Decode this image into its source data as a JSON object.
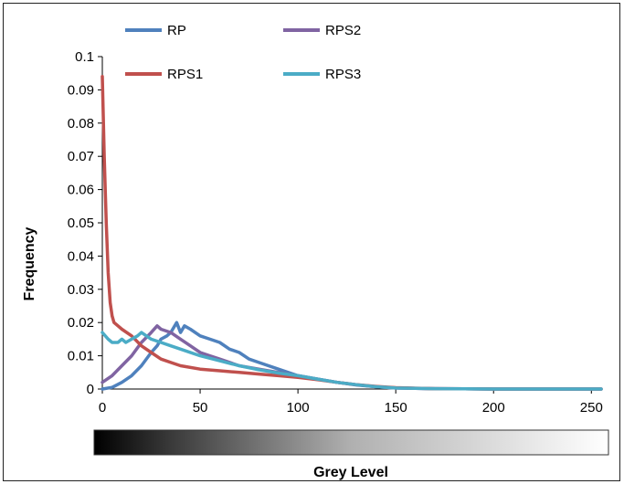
{
  "chart_data": {
    "type": "line",
    "xlabel": "Grey Level",
    "ylabel": "Frequency",
    "xlim": [
      0,
      255
    ],
    "ylim": [
      0,
      0.1
    ],
    "x_ticks": [
      0,
      50,
      100,
      150,
      200,
      250
    ],
    "x_tick_labels": [
      "0",
      "50",
      "100",
      "150",
      "200",
      "250"
    ],
    "y_ticks": [
      0,
      0.01,
      0.02,
      0.03,
      0.04,
      0.05,
      0.06,
      0.07,
      0.08,
      0.09,
      0.1
    ],
    "y_tick_labels": [
      "0",
      "0.01",
      "0.02",
      "0.03",
      "0.04",
      "0.05",
      "0.06",
      "0.07",
      "0.08",
      "0.09",
      "0.1"
    ],
    "grid": false,
    "legend_position": "top",
    "colorbar": "greyscale gradient from black (0) to white (255) below x-axis",
    "series": [
      {
        "name": "RP",
        "color": "#4F81BD",
        "points": [
          [
            0,
            0
          ],
          [
            5,
            0.0005
          ],
          [
            10,
            0.002
          ],
          [
            15,
            0.004
          ],
          [
            20,
            0.007
          ],
          [
            25,
            0.011
          ],
          [
            28,
            0.013
          ],
          [
            30,
            0.015
          ],
          [
            33,
            0.016
          ],
          [
            35,
            0.017
          ],
          [
            38,
            0.02
          ],
          [
            40,
            0.017
          ],
          [
            42,
            0.019
          ],
          [
            45,
            0.018
          ],
          [
            50,
            0.016
          ],
          [
            55,
            0.015
          ],
          [
            60,
            0.014
          ],
          [
            65,
            0.012
          ],
          [
            70,
            0.011
          ],
          [
            75,
            0.009
          ],
          [
            80,
            0.008
          ],
          [
            90,
            0.006
          ],
          [
            100,
            0.004
          ],
          [
            110,
            0.003
          ],
          [
            120,
            0.002
          ],
          [
            130,
            0.0012
          ],
          [
            140,
            0.0007
          ],
          [
            150,
            0.0003
          ],
          [
            170,
            0.0001
          ],
          [
            200,
            0
          ],
          [
            255,
            0
          ]
        ]
      },
      {
        "name": "RPS1",
        "color": "#C0504D",
        "points": [
          [
            0,
            0.094
          ],
          [
            1,
            0.07
          ],
          [
            2,
            0.05
          ],
          [
            3,
            0.035
          ],
          [
            4,
            0.026
          ],
          [
            5,
            0.022
          ],
          [
            6,
            0.02
          ],
          [
            8,
            0.019
          ],
          [
            10,
            0.018
          ],
          [
            15,
            0.016
          ],
          [
            20,
            0.013
          ],
          [
            25,
            0.011
          ],
          [
            30,
            0.009
          ],
          [
            35,
            0.008
          ],
          [
            40,
            0.007
          ],
          [
            50,
            0.006
          ],
          [
            60,
            0.0055
          ],
          [
            70,
            0.005
          ],
          [
            80,
            0.0045
          ],
          [
            90,
            0.004
          ],
          [
            100,
            0.0035
          ],
          [
            110,
            0.0028
          ],
          [
            120,
            0.002
          ],
          [
            130,
            0.0013
          ],
          [
            140,
            0.0008
          ],
          [
            150,
            0.0004
          ],
          [
            170,
            0.0001
          ],
          [
            200,
            0
          ],
          [
            255,
            0
          ]
        ]
      },
      {
        "name": "RPS2",
        "color": "#8064A2",
        "points": [
          [
            0,
            0.002
          ],
          [
            5,
            0.004
          ],
          [
            10,
            0.007
          ],
          [
            15,
            0.01
          ],
          [
            20,
            0.014
          ],
          [
            25,
            0.017
          ],
          [
            28,
            0.019
          ],
          [
            30,
            0.018
          ],
          [
            35,
            0.017
          ],
          [
            40,
            0.015
          ],
          [
            45,
            0.013
          ],
          [
            50,
            0.011
          ],
          [
            55,
            0.01
          ],
          [
            60,
            0.009
          ],
          [
            70,
            0.007
          ],
          [
            80,
            0.006
          ],
          [
            90,
            0.005
          ],
          [
            100,
            0.004
          ],
          [
            110,
            0.003
          ],
          [
            120,
            0.002
          ],
          [
            130,
            0.0013
          ],
          [
            140,
            0.0007
          ],
          [
            150,
            0.0003
          ],
          [
            170,
            0.0001
          ],
          [
            200,
            0
          ],
          [
            255,
            0
          ]
        ]
      },
      {
        "name": "RPS3",
        "color": "#4BACC6",
        "points": [
          [
            0,
            0.017
          ],
          [
            3,
            0.015
          ],
          [
            5,
            0.014
          ],
          [
            8,
            0.014
          ],
          [
            10,
            0.015
          ],
          [
            12,
            0.014
          ],
          [
            15,
            0.015
          ],
          [
            18,
            0.016
          ],
          [
            20,
            0.017
          ],
          [
            25,
            0.015
          ],
          [
            30,
            0.014
          ],
          [
            35,
            0.013
          ],
          [
            40,
            0.012
          ],
          [
            50,
            0.01
          ],
          [
            60,
            0.0085
          ],
          [
            70,
            0.007
          ],
          [
            80,
            0.0058
          ],
          [
            90,
            0.0048
          ],
          [
            100,
            0.004
          ],
          [
            110,
            0.003
          ],
          [
            120,
            0.002
          ],
          [
            130,
            0.0013
          ],
          [
            140,
            0.0007
          ],
          [
            150,
            0.0003
          ],
          [
            170,
            0.0001
          ],
          [
            200,
            0
          ],
          [
            255,
            0
          ]
        ]
      }
    ]
  }
}
